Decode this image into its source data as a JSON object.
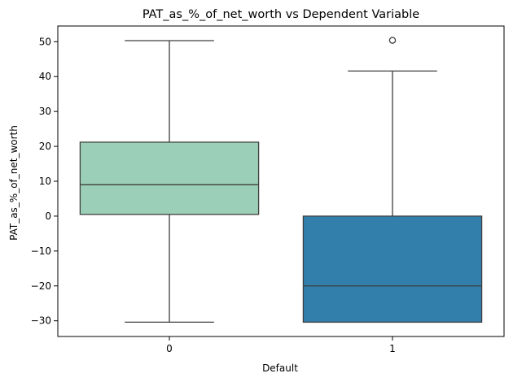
{
  "chart_data": {
    "type": "box",
    "title": "PAT_as_%_of_net_worth vs Dependent Variable",
    "xlabel": "Default",
    "ylabel": "PAT_as_%_of_net_worth",
    "categories": [
      "0",
      "1"
    ],
    "ylim": [
      -34.5,
      54.5
    ],
    "yticks": [
      -30,
      -20,
      -10,
      0,
      10,
      20,
      30,
      40,
      50
    ],
    "grid": false,
    "boxes": [
      {
        "category": "0",
        "whisker_low": -30.4,
        "q1": 0.5,
        "median": 9.0,
        "q3": 21.2,
        "whisker_high": 50.3,
        "outliers": [],
        "color": "#9ccfb7"
      },
      {
        "category": "1",
        "whisker_low": -30.4,
        "q1": -30.4,
        "median": -20.0,
        "q3": 0.0,
        "whisker_high": 41.6,
        "outliers": [
          50.4
        ],
        "color": "#327fab"
      }
    ]
  }
}
